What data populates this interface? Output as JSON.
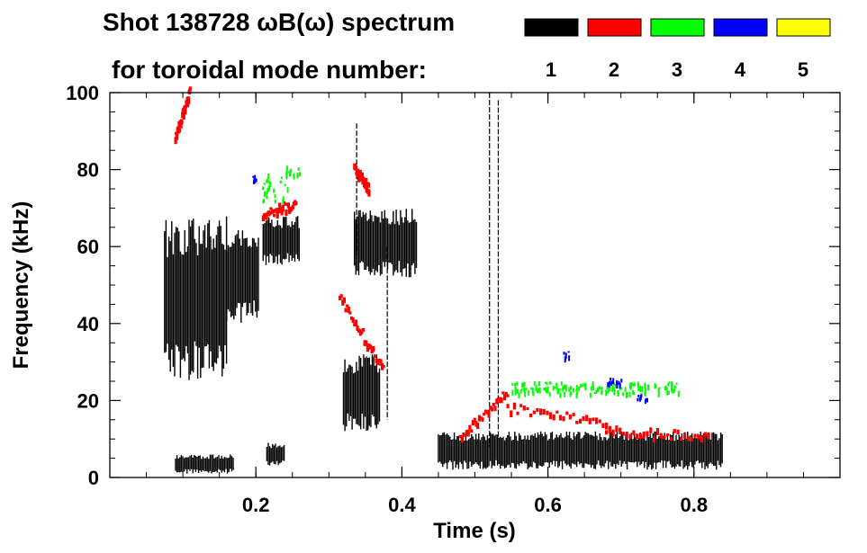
{
  "chart_data": {
    "type": "heatmap",
    "title": "Shot 138728 ωB(ω) spectrum",
    "subtitle": "for toroidal mode number:",
    "xlabel": "Time (s)",
    "ylabel": "Frequency (kHz)",
    "xlim": [
      0.0,
      1.0
    ],
    "ylim": [
      0,
      100
    ],
    "xticks": [
      {
        "value": 0.2,
        "label": "0.2"
      },
      {
        "value": 0.4,
        "label": "0.4"
      },
      {
        "value": 0.6,
        "label": "0.6"
      },
      {
        "value": 0.8,
        "label": "0.8"
      }
    ],
    "yticks": [
      {
        "value": 0,
        "label": "0"
      },
      {
        "value": 20,
        "label": "20"
      },
      {
        "value": 40,
        "label": "40"
      },
      {
        "value": 60,
        "label": "60"
      },
      {
        "value": 80,
        "label": "80"
      },
      {
        "value": 100,
        "label": "100"
      }
    ],
    "legend": {
      "placement": "top-right",
      "entries": [
        {
          "label": "1",
          "color": "#000000"
        },
        {
          "label": "2",
          "color": "#ff0000"
        },
        {
          "label": "3",
          "color": "#00ff00"
        },
        {
          "label": "4",
          "color": "#0000ff"
        },
        {
          "label": "5",
          "color": "#ffff00"
        }
      ]
    },
    "series": [
      {
        "name": "n=1",
        "color": "#000000",
        "regions": [
          {
            "t": [
              0.075,
              0.16
            ],
            "f": [
              25,
              68
            ]
          },
          {
            "t": [
              0.16,
              0.205
            ],
            "f": [
              40,
              65
            ]
          },
          {
            "t": [
              0.21,
              0.26
            ],
            "f": [
              55,
              68
            ]
          },
          {
            "t": [
              0.09,
              0.17
            ],
            "f": [
              1,
              6
            ]
          },
          {
            "t": [
              0.215,
              0.24
            ],
            "f": [
              3,
              9
            ]
          },
          {
            "t": [
              0.32,
              0.37
            ],
            "f": [
              12,
              32
            ]
          },
          {
            "t": [
              0.335,
              0.42
            ],
            "f": [
              52,
              70
            ]
          },
          {
            "t": [
              0.45,
              0.84
            ],
            "f": [
              2,
              12
            ]
          }
        ],
        "lines": [
          {
            "t": 0.52,
            "f": [
              8,
              100
            ]
          },
          {
            "t": 0.532,
            "f": [
              10,
              98
            ]
          },
          {
            "t": 0.338,
            "f": [
              58,
              92
            ]
          },
          {
            "t": 0.38,
            "f": [
              15,
              60
            ]
          }
        ]
      },
      {
        "name": "n=2",
        "color": "#ff0000",
        "tracks": [
          {
            "t": [
              0.09,
              0.11
            ],
            "f": [
              88,
              100
            ]
          },
          {
            "t": [
              0.21,
              0.255
            ],
            "f": [
              68,
              71
            ]
          },
          {
            "t": [
              0.315,
              0.375
            ],
            "f": [
              47,
              28
            ]
          },
          {
            "t": [
              0.335,
              0.355
            ],
            "f": [
              80,
              75
            ]
          },
          {
            "t": [
              0.48,
              0.545
            ],
            "f": [
              10,
              22
            ]
          },
          {
            "t": [
              0.545,
              0.68
            ],
            "f": [
              18,
              14
            ]
          },
          {
            "t": [
              0.68,
              0.82
            ],
            "f": [
              12,
              10
            ]
          }
        ]
      },
      {
        "name": "n=3",
        "color": "#00ff00",
        "regions": [
          {
            "t": [
              0.205,
              0.245
            ],
            "f": [
              72,
              79
            ]
          },
          {
            "t": [
              0.24,
              0.262
            ],
            "f": [
              78,
              81
            ]
          },
          {
            "t": [
              0.55,
              0.78
            ],
            "f": [
              22,
              25
            ]
          }
        ]
      },
      {
        "name": "n=4",
        "color": "#0000ff",
        "regions": [
          {
            "t": [
              0.195,
              0.2
            ],
            "f": [
              77,
              79
            ]
          },
          {
            "t": [
              0.62,
              0.63
            ],
            "f": [
              31,
              33
            ]
          },
          {
            "t": [
              0.68,
              0.7
            ],
            "f": [
              24,
              26
            ]
          },
          {
            "t": [
              0.72,
              0.735
            ],
            "f": [
              20,
              22
            ]
          }
        ]
      },
      {
        "name": "n=5",
        "color": "#ffff00",
        "regions": []
      }
    ]
  }
}
